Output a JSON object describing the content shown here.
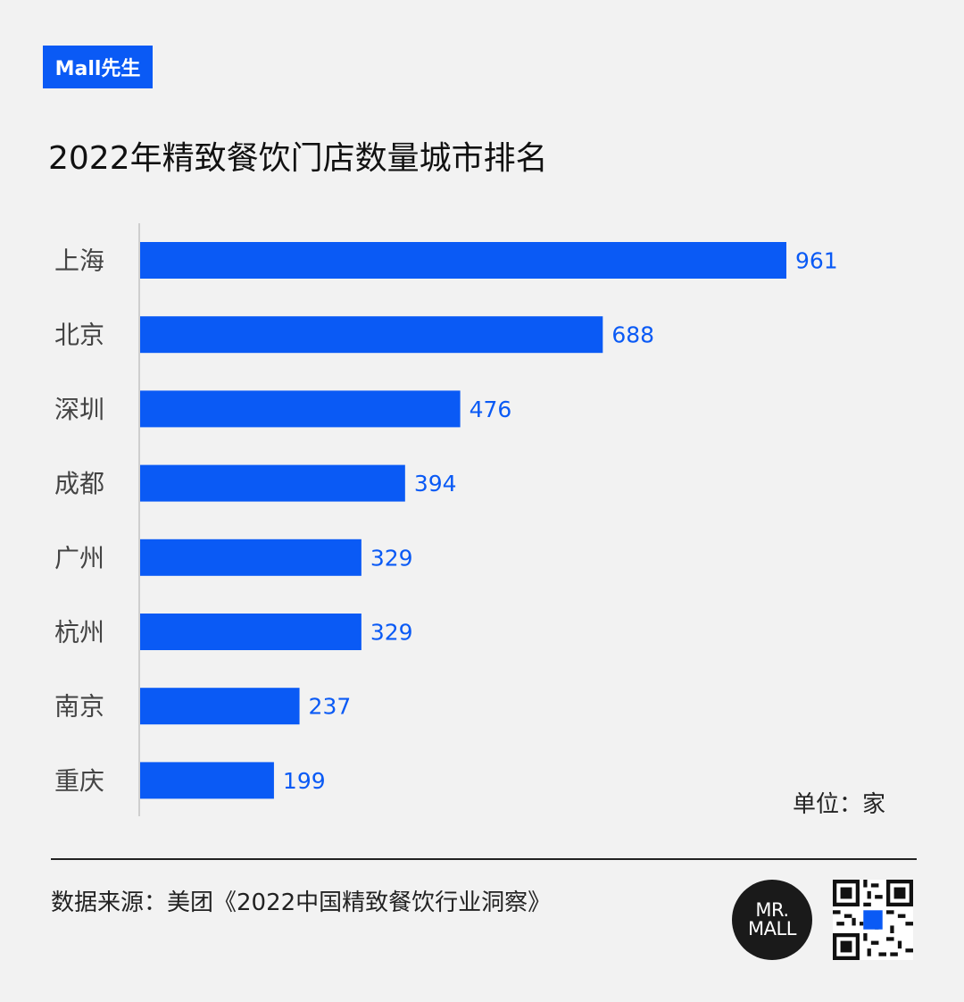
{
  "brand": {
    "badge_label": "Mall先生"
  },
  "chart_data": {
    "type": "bar",
    "orientation": "horizontal",
    "title": "2022年精致餐饮门店数量城市排名",
    "categories": [
      "上海",
      "北京",
      "深圳",
      "成都",
      "广州",
      "杭州",
      "南京",
      "重庆"
    ],
    "values": [
      961,
      688,
      476,
      394,
      329,
      329,
      237,
      199
    ],
    "unit_label": "单位：家",
    "bar_color": "#0a5af5",
    "value_label_color": "#0a5af5",
    "grid": false
  },
  "footer": {
    "source": "数据来源：美团《2022中国精致餐饮行业洞察》",
    "logo_line1": "MR.",
    "logo_line2": "MALL"
  }
}
